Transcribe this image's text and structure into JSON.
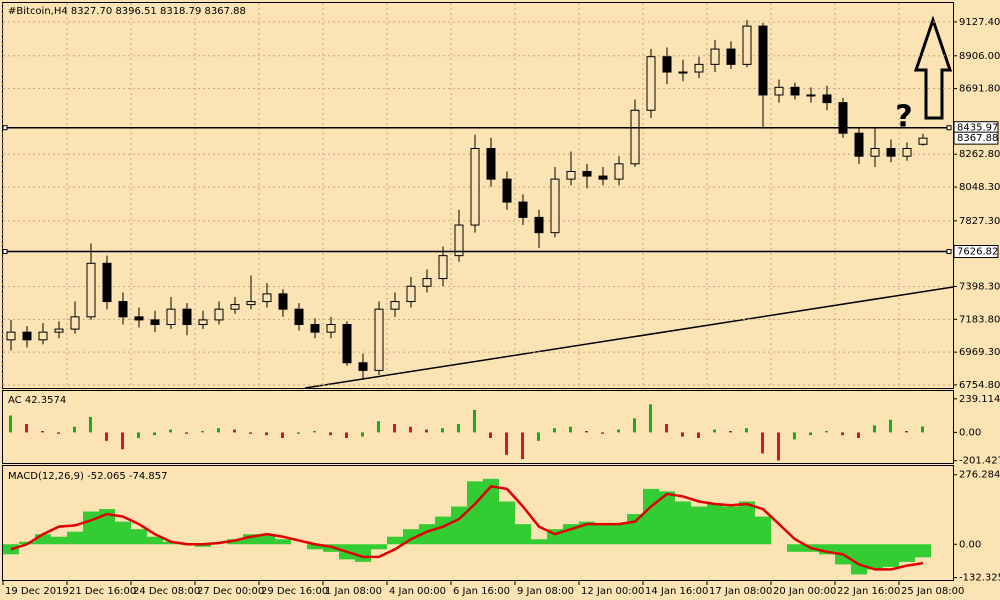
{
  "chart_data": [
    {
      "type": "candlestick",
      "title": "#Bitcoin,H4  8327.70 8396.51 8318.79 8367.88",
      "open": [
        7050,
        7100,
        7050,
        7100,
        7120,
        7200,
        7550,
        7300,
        7200,
        7180,
        7150,
        7250,
        7150,
        7180,
        7250,
        7280,
        7300,
        7350,
        7250,
        7150,
        7100,
        7150,
        6900,
        6850,
        7250,
        7300,
        7400,
        7450,
        7600,
        7800,
        8300,
        8100,
        7950,
        7850,
        7750,
        8100,
        8150,
        8120,
        8100,
        8200,
        8550,
        8900,
        8800,
        8800,
        8850,
        8950,
        8850,
        9100,
        8650,
        8700,
        8650,
        8650,
        8600,
        8400,
        8250,
        8300,
        8250,
        8327.7
      ],
      "high": [
        7180,
        7140,
        7160,
        7170,
        7300,
        7680,
        7600,
        7360,
        7260,
        7240,
        7330,
        7290,
        7240,
        7300,
        7330,
        7470,
        7420,
        7380,
        7290,
        7190,
        7200,
        7170,
        6960,
        7300,
        7360,
        7460,
        7510,
        7660,
        7900,
        8390,
        8370,
        8150,
        8000,
        7900,
        8180,
        8280,
        8200,
        8180,
        8250,
        8620,
        8950,
        8960,
        8880,
        8900,
        9010,
        9000,
        9140,
        9120,
        8750,
        8730,
        8700,
        8710,
        8630,
        8440,
        8440,
        8360,
        8340,
        8396.51
      ],
      "low": [
        6980,
        7000,
        7020,
        7060,
        7090,
        7180,
        7250,
        7150,
        7130,
        7100,
        7120,
        7080,
        7120,
        7150,
        7220,
        7250,
        7260,
        7200,
        7110,
        7060,
        7060,
        6880,
        6790,
        6820,
        7200,
        7260,
        7360,
        7400,
        7560,
        7750,
        8050,
        7900,
        7800,
        7650,
        7720,
        8060,
        8040,
        8060,
        8060,
        8180,
        8500,
        8720,
        8740,
        8760,
        8800,
        8820,
        8830,
        8430,
        8600,
        8620,
        8600,
        8550,
        8370,
        8200,
        8180,
        8210,
        8220,
        8318.79
      ],
      "close": [
        7100,
        7050,
        7100,
        7120,
        7200,
        7550,
        7300,
        7200,
        7180,
        7150,
        7250,
        7150,
        7180,
        7250,
        7280,
        7300,
        7350,
        7250,
        7150,
        7100,
        7150,
        6900,
        6850,
        7250,
        7300,
        7400,
        7450,
        7600,
        7800,
        8300,
        8100,
        7950,
        7850,
        7750,
        8100,
        8150,
        8120,
        8100,
        8200,
        8550,
        8900,
        8800,
        8800,
        8850,
        8950,
        8850,
        9100,
        8650,
        8700,
        8650,
        8650,
        8600,
        8400,
        8250,
        8300,
        8250,
        8300,
        8367.88
      ],
      "color": "#000000",
      "up_fill": "#fbe3b3",
      "down_fill": "#000000",
      "ylim": [
        6735,
        9251
      ],
      "yticks": [
        {
          "value": 9127.4,
          "label": "9127.40"
        },
        {
          "value": 8906,
          "label": "8906.00"
        },
        {
          "value": 8691.8,
          "label": "8691.80"
        },
        {
          "value": 8262.8,
          "label": "8262.80"
        },
        {
          "value": 8048.3,
          "label": "8048.30"
        },
        {
          "value": 7827.3,
          "label": "7827.30"
        },
        {
          "value": 7398.3,
          "label": "7398.30"
        },
        {
          "value": 7183.8,
          "label": "7183.80"
        },
        {
          "value": 6969.3,
          "label": "6969.30"
        },
        {
          "value": 6754.8,
          "label": "6754.80"
        }
      ],
      "levels": [
        8435.97,
        7626.82
      ],
      "annotation": "?",
      "grid": true
    },
    {
      "type": "bar",
      "title": "AC 42.3574",
      "values": [
        120,
        60,
        10,
        -10,
        40,
        110,
        -60,
        -120,
        -40,
        -20,
        20,
        -10,
        10,
        30,
        20,
        -10,
        -20,
        -40,
        -10,
        10,
        -20,
        -40,
        -30,
        80,
        60,
        40,
        20,
        30,
        60,
        160,
        -40,
        -160,
        -190,
        -60,
        30,
        40,
        10,
        -10,
        20,
        100,
        200,
        60,
        -30,
        -40,
        20,
        10,
        30,
        -150,
        -200,
        -50,
        -20,
        10,
        -20,
        -40,
        50,
        90,
        10,
        42.3574
      ],
      "up_color": "#1fa51f",
      "down_color": "#d21a1a",
      "ylim": [
        -218,
        295
      ],
      "yticks": [
        239.1147,
        {
          "value": 0,
          "label": "0.00"
        },
        -201.4277
      ]
    },
    {
      "type": "macd",
      "title": "MACD(12,26,9) -52.065 -74.857",
      "categories": [
        "19 Dec 2019",
        null,
        null,
        null,
        "21 Dec 16:00",
        null,
        null,
        null,
        "24 Dec 08:00",
        null,
        null,
        null,
        "27 Dec 00:00",
        null,
        null,
        null,
        "29 Dec 16:00",
        null,
        null,
        null,
        "1 Jan 08:00",
        null,
        null,
        null,
        "4 Jan 00:00",
        null,
        null,
        null,
        "6 Jan 16:00",
        null,
        null,
        null,
        "9 Jan 08:00",
        null,
        null,
        null,
        "12 Jan 00:00",
        null,
        null,
        null,
        "14 Jan 16:00",
        null,
        null,
        null,
        "17 Jan 08:00",
        null,
        null,
        null,
        "20 Jan 00:00",
        null,
        null,
        null,
        "22 Jan 16:00",
        null,
        null,
        null,
        "25 Jan 08:00",
        null
      ],
      "values": [
        -40,
        10,
        40,
        30,
        50,
        130,
        140,
        90,
        60,
        30,
        10,
        0,
        -10,
        0,
        20,
        40,
        40,
        20,
        0,
        -20,
        -30,
        -60,
        -70,
        -20,
        30,
        60,
        80,
        110,
        150,
        250,
        260,
        170,
        80,
        20,
        60,
        80,
        90,
        80,
        80,
        120,
        220,
        210,
        170,
        150,
        160,
        150,
        170,
        110,
        0,
        -30,
        -30,
        -40,
        -80,
        -120,
        -100,
        -90,
        -70,
        -52.065
      ],
      "color": "#33cc33",
      "signal_values": [
        -20,
        0,
        40,
        70,
        75,
        95,
        120,
        110,
        80,
        40,
        10,
        0,
        0,
        5,
        15,
        30,
        40,
        30,
        15,
        0,
        -10,
        -30,
        -50,
        -50,
        -20,
        20,
        50,
        70,
        100,
        160,
        230,
        220,
        150,
        70,
        40,
        60,
        80,
        80,
        80,
        90,
        150,
        200,
        190,
        170,
        160,
        155,
        160,
        140,
        80,
        20,
        -15,
        -30,
        -40,
        -80,
        -100,
        -100,
        -85,
        -74.857
      ],
      "signal_color": "#e00000",
      "ylim": [
        -142,
        311
      ],
      "yticks": [
        276.284,
        {
          "value": 0,
          "label": "0.00"
        },
        -132.325
      ]
    }
  ]
}
